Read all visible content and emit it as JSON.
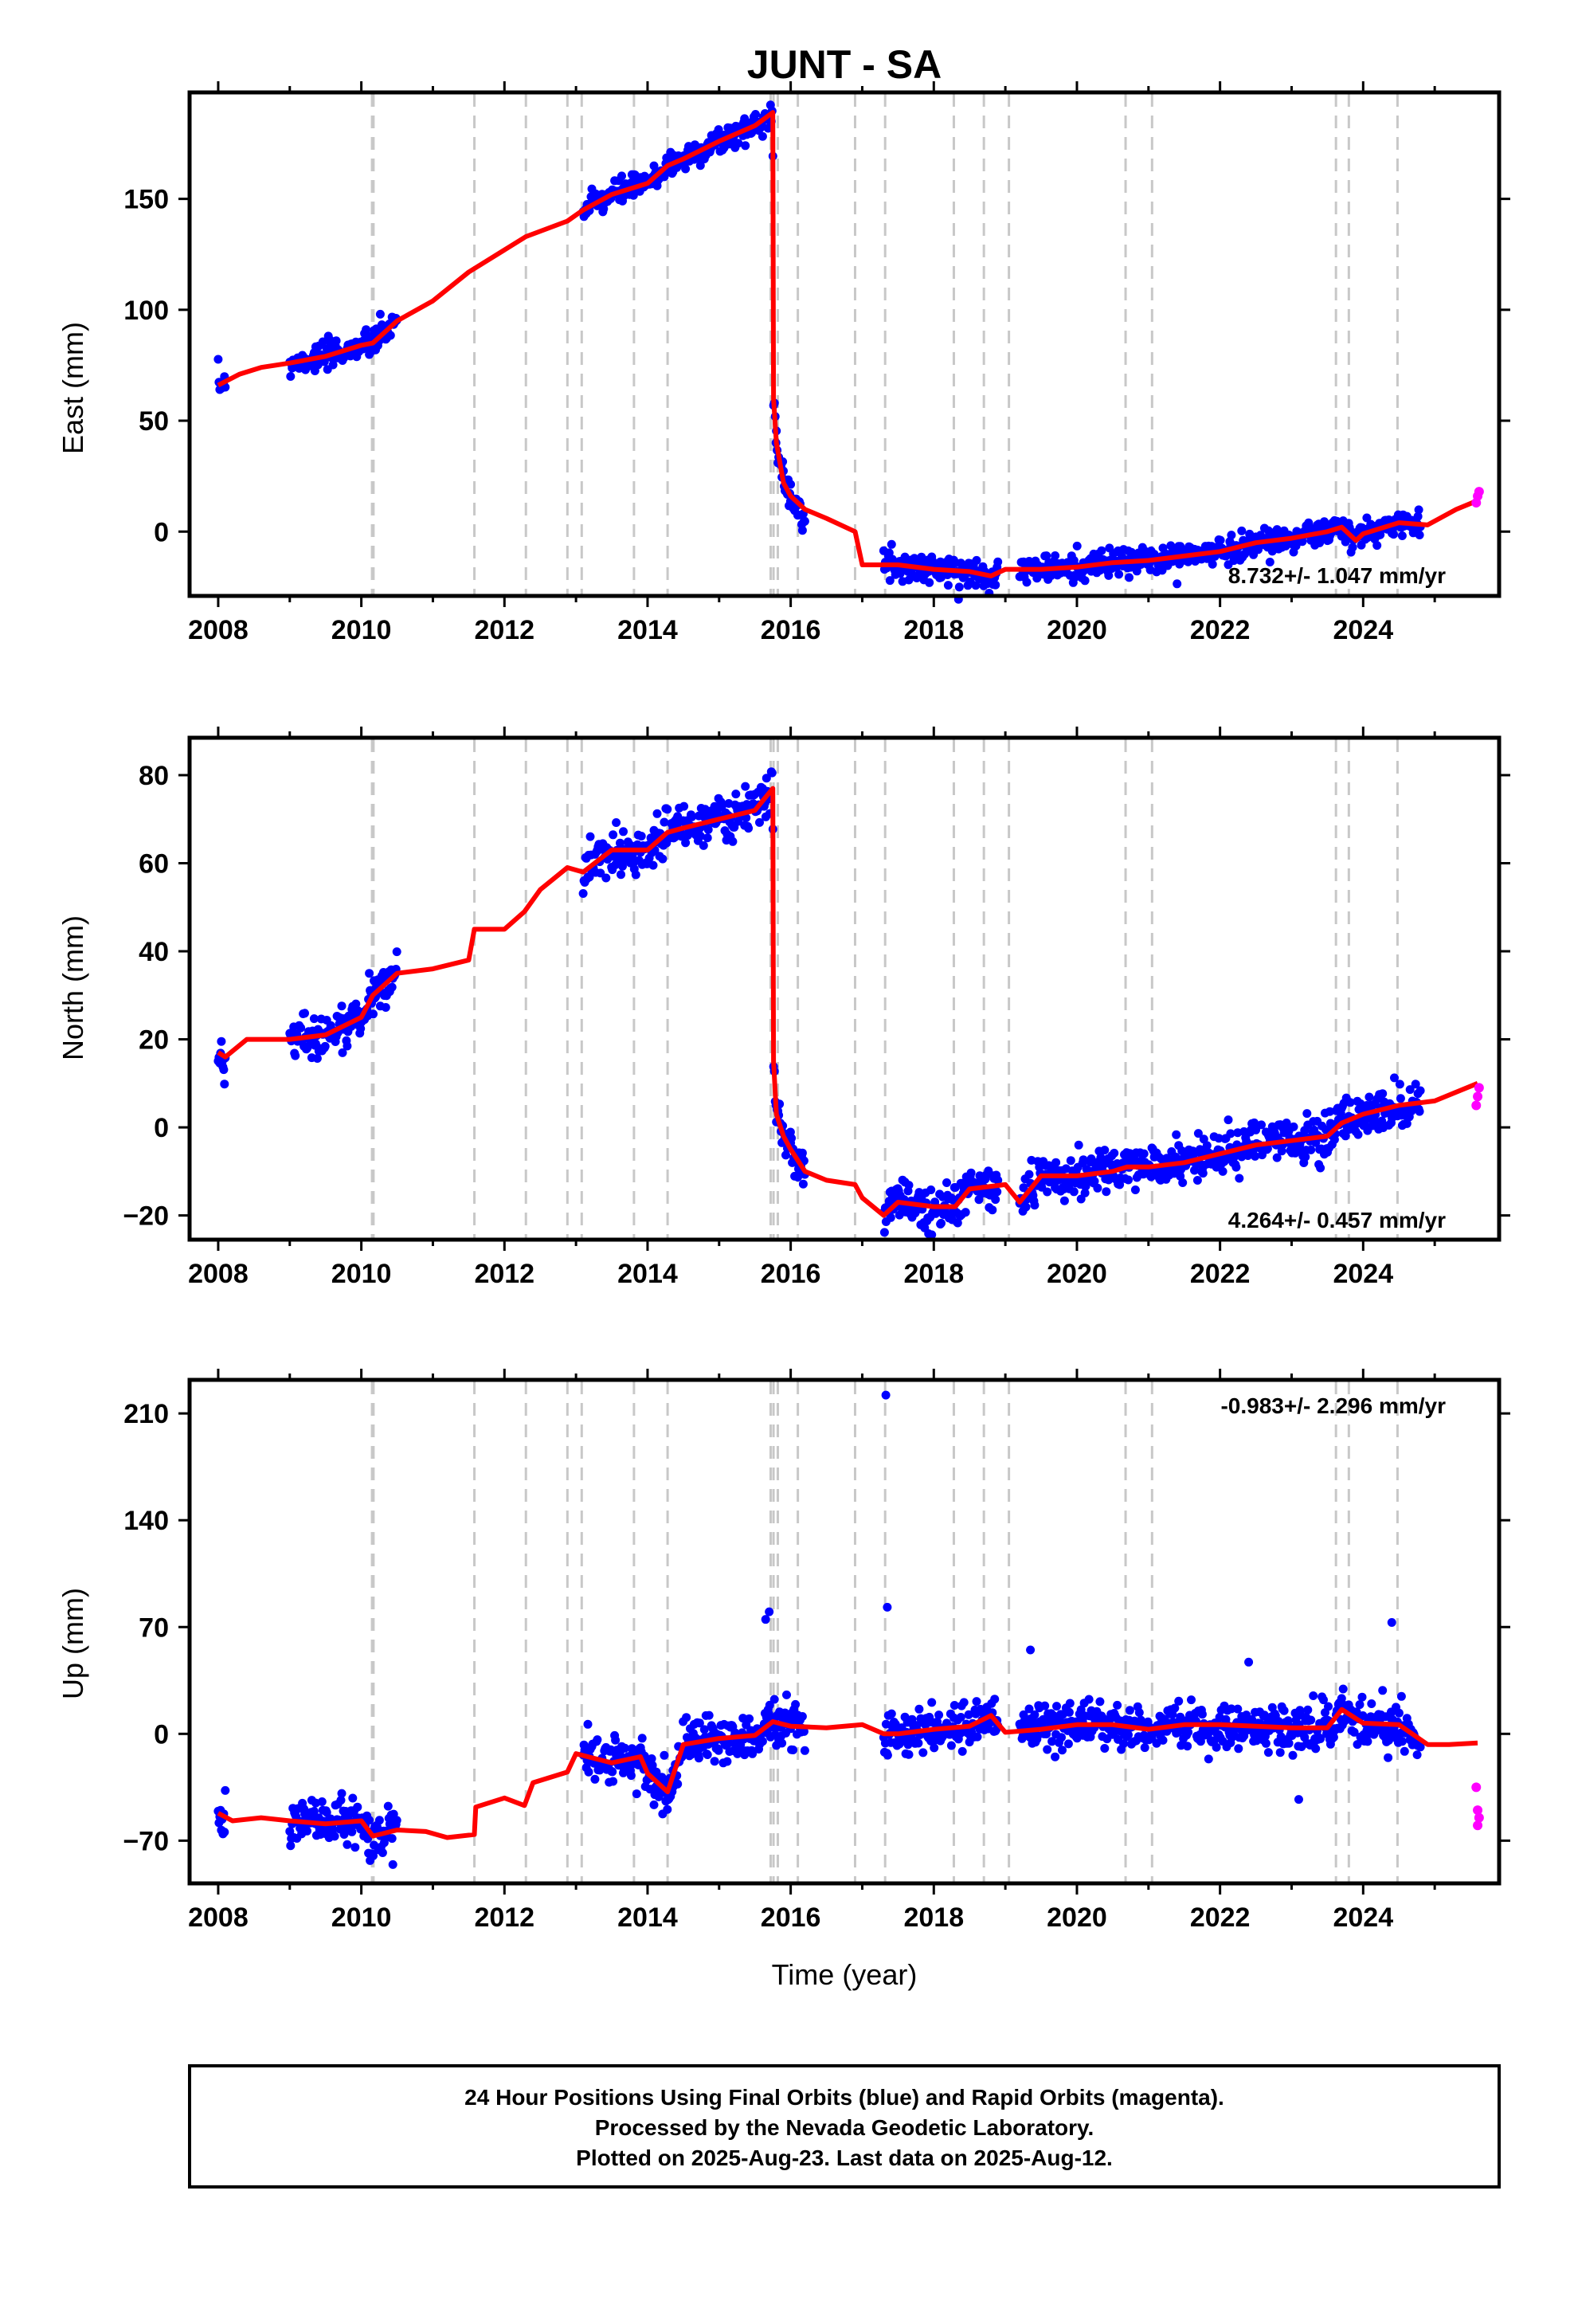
{
  "chart_data": [
    {
      "type": "scatter",
      "panel": "east",
      "title": "JUNT - SA",
      "xlabel": "",
      "ylabel": "East (mm)",
      "xlim": [
        2007.6,
        2025.9
      ],
      "ylim": [
        -29,
        198
      ],
      "xticks": [
        "2008",
        "2010",
        "2012",
        "2014",
        "2016",
        "2018",
        "2020",
        "2022",
        "2024"
      ],
      "yticks": [
        "0",
        "50",
        "100",
        "150"
      ],
      "grid": false,
      "annotation": "8.732+/- 1.047 mm/yr",
      "rate": {
        "value": 8.732,
        "sigma": 1.047,
        "units": "mm/yr"
      },
      "colors": {
        "final": "#0000ff",
        "rapid": "#ff00ff",
        "model": "#ff0000",
        "event": "#c8c8c8"
      },
      "observation_segments": [
        [
          2008.0,
          2008.1
        ],
        [
          2009.0,
          2010.5
        ],
        [
          2013.1,
          2015.8
        ],
        [
          2015.8,
          2016.0
        ],
        [
          2016.0,
          2016.2
        ],
        [
          2017.3,
          2018.9
        ],
        [
          2019.2,
          2024.8
        ]
      ],
      "series": [
        {
          "role": "model",
          "x": [
            2008.0,
            2008.3,
            2008.6,
            2009.0,
            2009.5,
            2010.0,
            2010.16,
            2010.5,
            2011.0,
            2011.5,
            2012.0,
            2012.3,
            2012.88,
            2013.1,
            2013.5,
            2014.0,
            2014.28,
            2014.5,
            2015.0,
            2015.5,
            2015.75,
            2015.76,
            2015.8,
            2015.9,
            2016.0,
            2016.2,
            2016.5,
            2016.9,
            2017.0,
            2017.5,
            2018.0,
            2018.5,
            2018.8,
            2019.0,
            2019.5,
            2020.0,
            2020.5,
            2021.0,
            2021.5,
            2022.0,
            2022.5,
            2023.0,
            2023.5,
            2023.7,
            2023.9,
            2024.0,
            2024.5,
            2024.9,
            2025.3,
            2025.6
          ],
          "y": [
            66,
            71,
            74,
            76,
            79,
            84,
            85,
            95,
            104,
            117,
            127,
            133,
            140,
            145,
            152,
            157,
            165,
            168,
            176,
            183,
            189,
            60,
            40,
            22,
            16,
            10,
            6,
            0,
            -15,
            -15,
            -17,
            -18,
            -20,
            -17,
            -17,
            -16,
            -14,
            -13,
            -11,
            -9,
            -5,
            -3,
            0,
            2,
            -4,
            -1,
            4,
            3,
            10,
            14
          ]
        },
        {
          "role": "rapid",
          "x": [
            2025.58,
            2025.6,
            2025.62
          ],
          "y": [
            13,
            16,
            18
          ]
        }
      ]
    },
    {
      "type": "scatter",
      "panel": "north",
      "title": "",
      "xlabel": "",
      "ylabel": "North (mm)",
      "xlim": [
        2007.6,
        2025.9
      ],
      "ylim": [
        -25.5,
        88.5
      ],
      "xticks": [
        "2008",
        "2010",
        "2012",
        "2014",
        "2016",
        "2018",
        "2020",
        "2022",
        "2024"
      ],
      "yticks": [
        "−20",
        "0",
        "20",
        "40",
        "60",
        "80"
      ],
      "grid": false,
      "annotation": "4.264+/- 0.457 mm/yr",
      "rate": {
        "value": 4.264,
        "sigma": 0.457,
        "units": "mm/yr"
      },
      "colors": {
        "final": "#0000ff",
        "rapid": "#ff00ff",
        "model": "#ff0000",
        "event": "#c8c8c8"
      },
      "observation_segments": [
        [
          2008.0,
          2008.1
        ],
        [
          2009.0,
          2010.5
        ],
        [
          2013.1,
          2015.8
        ],
        [
          2015.8,
          2016.0
        ],
        [
          2016.0,
          2016.2
        ],
        [
          2017.3,
          2018.9
        ],
        [
          2019.2,
          2024.8
        ]
      ],
      "series": [
        {
          "role": "model",
          "x": [
            2008.0,
            2008.1,
            2008.4,
            2008.6,
            2009.0,
            2009.5,
            2010.0,
            2010.16,
            2010.5,
            2011.0,
            2011.5,
            2011.58,
            2012.0,
            2012.28,
            2012.5,
            2012.88,
            2013.1,
            2013.5,
            2014.0,
            2014.28,
            2014.5,
            2015.0,
            2015.5,
            2015.75,
            2015.76,
            2015.8,
            2015.9,
            2016.0,
            2016.2,
            2016.5,
            2016.9,
            2017.0,
            2017.3,
            2017.5,
            2018.0,
            2018.3,
            2018.5,
            2019.0,
            2019.2,
            2019.5,
            2020.0,
            2020.5,
            2020.7,
            2021.0,
            2021.5,
            2022.0,
            2022.5,
            2023.0,
            2023.5,
            2023.7,
            2024.0,
            2024.5,
            2025.0,
            2025.6
          ],
          "y": [
            17,
            16,
            20,
            20,
            20,
            21,
            25,
            30,
            35,
            36,
            38,
            45,
            45,
            49,
            54,
            59,
            58,
            63,
            63,
            67,
            68,
            70,
            72,
            77,
            15,
            3,
            -2,
            -5,
            -10,
            -12,
            -13,
            -16,
            -20,
            -17,
            -18,
            -18,
            -14,
            -13,
            -17,
            -11,
            -11,
            -10,
            -9,
            -9,
            -8,
            -6,
            -4,
            -3,
            -2,
            1,
            3,
            5,
            6,
            10
          ]
        },
        {
          "role": "rapid",
          "x": [
            2025.58,
            2025.6,
            2025.62
          ],
          "y": [
            5,
            7,
            9
          ]
        }
      ]
    },
    {
      "type": "scatter",
      "panel": "up",
      "title": "",
      "xlabel": "Time (year)",
      "ylabel": "Up (mm)",
      "xlim": [
        2007.6,
        2025.9
      ],
      "ylim": [
        -98,
        232
      ],
      "xticks": [
        "2008",
        "2010",
        "2012",
        "2014",
        "2016",
        "2018",
        "2020",
        "2022",
        "2024"
      ],
      "yticks": [
        "−70",
        "0",
        "70",
        "140",
        "210"
      ],
      "grid": false,
      "annotation": "-0.983+/- 2.296 mm/yr",
      "rate": {
        "value": -0.983,
        "sigma": 2.296,
        "units": "mm/yr"
      },
      "colors": {
        "final": "#0000ff",
        "rapid": "#ff00ff",
        "model": "#ff0000",
        "event": "#c8c8c8"
      },
      "observation_segments": [
        [
          2008.0,
          2008.1
        ],
        [
          2009.0,
          2010.5
        ],
        [
          2013.1,
          2015.8
        ],
        [
          2015.8,
          2016.0
        ],
        [
          2016.0,
          2016.2
        ],
        [
          2017.3,
          2018.9
        ],
        [
          2019.2,
          2024.8
        ]
      ],
      "outliers": [
        {
          "x": 2015.65,
          "y": 75
        },
        {
          "x": 2015.7,
          "y": 80
        },
        {
          "x": 2017.33,
          "y": 222
        },
        {
          "x": 2017.35,
          "y": 83
        },
        {
          "x": 2019.35,
          "y": 55
        },
        {
          "x": 2022.4,
          "y": 47
        },
        {
          "x": 2024.4,
          "y": 73
        },
        {
          "x": 2023.1,
          "y": -43
        }
      ],
      "series": [
        {
          "role": "model",
          "x": [
            2008.0,
            2008.2,
            2008.6,
            2009.0,
            2009.5,
            2010.0,
            2010.16,
            2010.5,
            2010.9,
            2011.2,
            2011.58,
            2011.6,
            2012.0,
            2012.28,
            2012.4,
            2012.88,
            2013.0,
            2013.5,
            2013.9,
            2014.0,
            2014.28,
            2014.5,
            2015.0,
            2015.5,
            2015.75,
            2016.0,
            2016.5,
            2017.0,
            2017.3,
            2017.5,
            2018.0,
            2018.5,
            2018.8,
            2019.0,
            2019.5,
            2020.0,
            2020.5,
            2021.0,
            2021.5,
            2022.0,
            2022.5,
            2023.0,
            2023.5,
            2023.7,
            2023.9,
            2024.0,
            2024.5,
            2024.9,
            2025.2,
            2025.6
          ],
          "y": [
            -52,
            -57,
            -55,
            -57,
            -59,
            -57,
            -67,
            -63,
            -64,
            -68,
            -66,
            -48,
            -42,
            -47,
            -32,
            -25,
            -13,
            -19,
            -15,
            -26,
            -38,
            -7,
            -3,
            -1,
            8,
            5,
            4,
            6,
            0,
            0,
            3,
            5,
            12,
            1,
            3,
            6,
            6,
            3,
            6,
            6,
            5,
            4,
            4,
            16,
            10,
            7,
            6,
            -7,
            -7,
            -6
          ]
        },
        {
          "role": "rapid",
          "x": [
            2025.58,
            2025.6,
            2025.62,
            2025.6
          ],
          "y": [
            -35,
            -50,
            -55,
            -60
          ]
        }
      ]
    }
  ],
  "events": [
    2010.15,
    2010.17,
    2011.58,
    2012.3,
    2012.88,
    2013.08,
    2013.81,
    2014.28,
    2015.72,
    2015.76,
    2015.82,
    2016.1,
    2016.9,
    2017.32,
    2018.28,
    2018.7,
    2019.05,
    2020.68,
    2021.05,
    2023.62,
    2023.8,
    2024.48
  ],
  "footer": {
    "line1": "24 Hour Positions Using Final Orbits (blue) and Rapid Orbits (magenta).",
    "line2": "Processed by the Nevada Geodetic Laboratory.",
    "line3": "Plotted on 2025-Aug-23. Last data on 2025-Aug-12."
  }
}
